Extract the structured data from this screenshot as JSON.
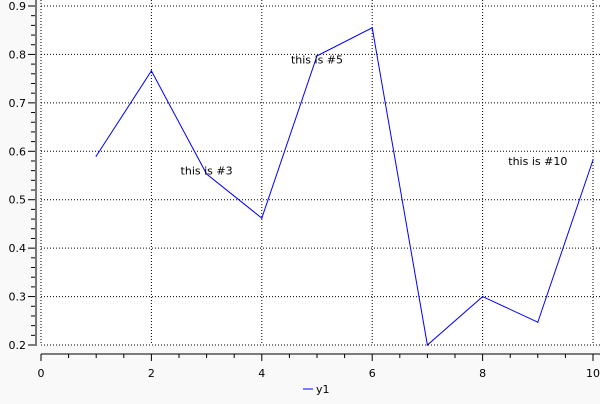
{
  "chart_data": {
    "type": "line",
    "title": "",
    "xlabel": "",
    "ylabel": "",
    "xlim": [
      0,
      10
    ],
    "ylim": [
      0.2,
      0.9
    ],
    "grid": true,
    "legend_position": "bottom",
    "x_ticks": [
      "0",
      "2",
      "4",
      "6",
      "8",
      "10"
    ],
    "y_ticks": [
      "0.2",
      "0.3",
      "0.4",
      "0.5",
      "0.6",
      "0.7",
      "0.8",
      "0.9"
    ],
    "series": [
      {
        "name": "y1",
        "color": "#0000ff",
        "x": [
          1,
          2,
          3,
          4,
          5,
          6,
          7,
          8,
          9,
          10
        ],
        "y": [
          0.59,
          0.766,
          0.553,
          0.462,
          0.797,
          0.855,
          0.2,
          0.3,
          0.247,
          0.582
        ]
      }
    ],
    "annotations": [
      {
        "text": "this is #3",
        "x": 3,
        "y": 0.56
      },
      {
        "text": "this is #5",
        "x": 5,
        "y": 0.79
      },
      {
        "text": "this is #10",
        "x": 9,
        "y": 0.58
      }
    ]
  }
}
